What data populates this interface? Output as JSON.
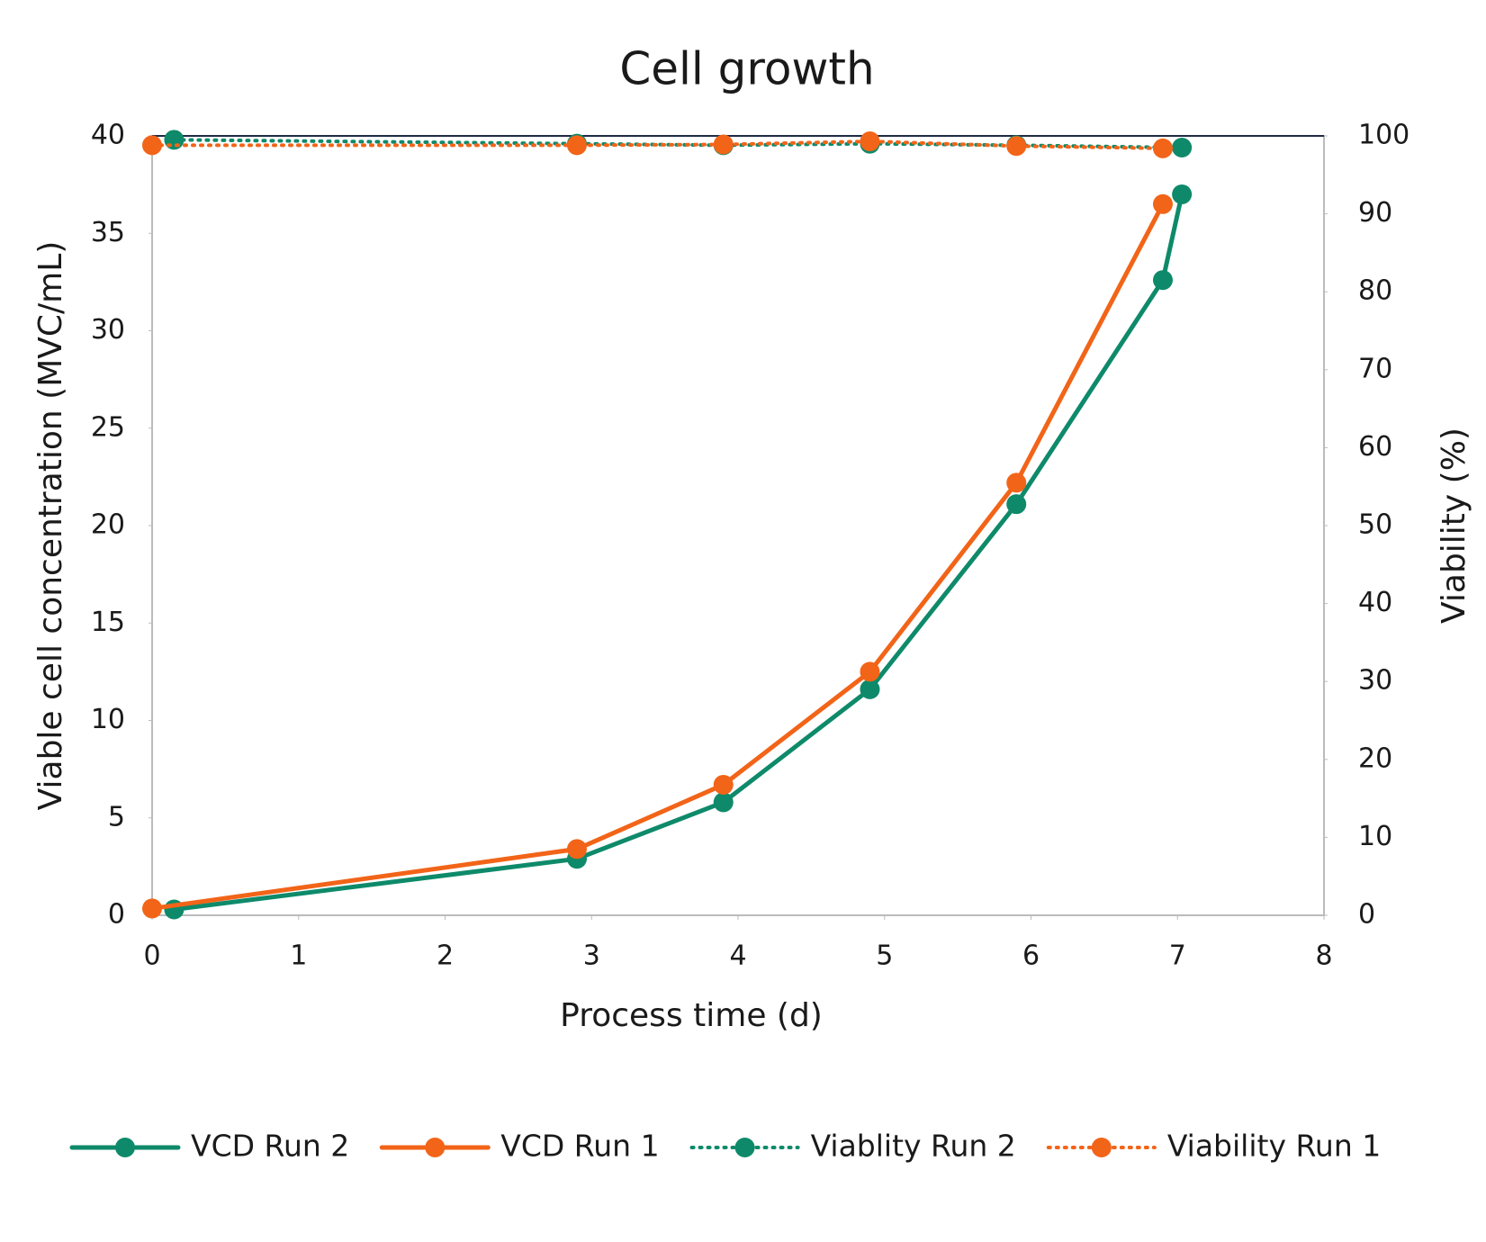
{
  "chart_data": {
    "type": "line",
    "title": "Cell growth",
    "x_label": "Process time (d)",
    "y_label": "Viable cell concentration (MVC/mL)",
    "y2_label": "Viability (%)",
    "xlim": [
      0,
      8
    ],
    "xticks": [
      0,
      1,
      2,
      3,
      4,
      5,
      6,
      7,
      8
    ],
    "ylim": [
      0,
      40
    ],
    "yticks": [
      0,
      5,
      10,
      15,
      20,
      25,
      30,
      35,
      40
    ],
    "y2lim": [
      0,
      100
    ],
    "y2ticks": [
      0,
      10,
      20,
      30,
      40,
      50,
      60,
      70,
      80,
      90,
      100
    ],
    "series": [
      {
        "name": "VCD Run 2",
        "color": "#0e8a6a",
        "style": "solid",
        "x": [
          0.15,
          2.9,
          3.9,
          4.9,
          5.9,
          6.9,
          7.03
        ],
        "values": [
          0.3,
          2.9,
          5.8,
          11.6,
          21.1,
          32.6,
          37.0
        ]
      },
      {
        "name": "VCD Run 1",
        "color": "#f26418",
        "style": "solid",
        "x": [
          0,
          2.9,
          3.9,
          4.9,
          5.9,
          6.9
        ],
        "values": [
          0.35,
          3.4,
          6.7,
          12.5,
          22.2,
          36.5
        ]
      },
      {
        "name": "Viablity Run 2",
        "color": "#0e8a6a",
        "style": "dotted",
        "axis": "y2",
        "x": [
          0.15,
          2.9,
          3.9,
          4.9,
          5.9,
          7.03
        ],
        "values": [
          99.5,
          99.0,
          98.8,
          99.0,
          98.8,
          98.5
        ]
      },
      {
        "name": "Viability Run 1",
        "color": "#f26418",
        "style": "dotted",
        "axis": "y2",
        "x": [
          0,
          2.9,
          3.9,
          4.9,
          5.9,
          6.9
        ],
        "values": [
          98.8,
          98.8,
          98.9,
          99.3,
          98.7,
          98.4
        ]
      }
    ]
  }
}
